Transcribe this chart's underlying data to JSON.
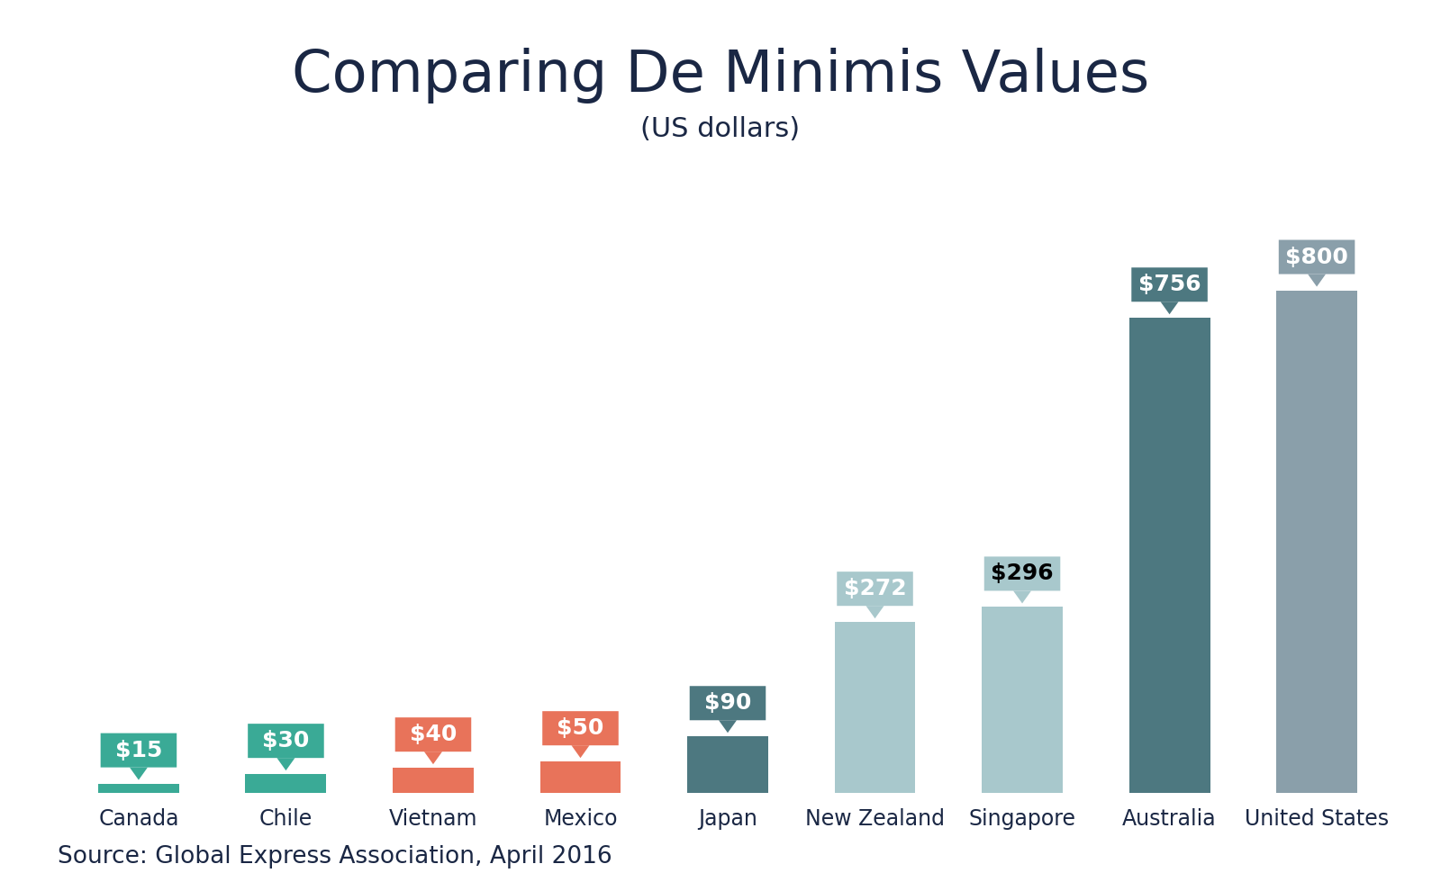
{
  "title": "Comparing De Minimis Values",
  "subtitle": "(US dollars)",
  "source": "Source: Global Express Association, April 2016",
  "categories": [
    "Canada",
    "Chile",
    "Vietnam",
    "Mexico",
    "Japan",
    "New Zealand",
    "Singapore",
    "Australia",
    "United States"
  ],
  "values": [
    15,
    30,
    40,
    50,
    90,
    272,
    296,
    756,
    800
  ],
  "labels": [
    "$15",
    "$30",
    "$40",
    "$50",
    "$90",
    "$272",
    "$296",
    "$756",
    "$800"
  ],
  "bar_colors": [
    "#3aaa96",
    "#3aaa96",
    "#e8735a",
    "#e8735a",
    "#4d7880",
    "#a8c8cc",
    "#a8c8cc",
    "#4d7880",
    "#8a9faa"
  ],
  "label_colors": [
    "#3aaa96",
    "#3aaa96",
    "#e8735a",
    "#e8735a",
    "#4d7880",
    "#a8c8cc",
    "#a8c8cc",
    "#4d7880",
    "#8a9faa"
  ],
  "label_text_colors": [
    "white",
    "white",
    "white",
    "white",
    "white",
    "white",
    "black",
    "white",
    "white"
  ],
  "background_color": "#ffffff",
  "title_color": "#1a2744",
  "subtitle_color": "#1a2744",
  "source_color": "#1a2744",
  "title_fontsize": 46,
  "subtitle_fontsize": 22,
  "source_fontsize": 19,
  "tick_label_fontsize": 17,
  "label_fontsize": 18,
  "ylim": [
    0,
    950
  ]
}
